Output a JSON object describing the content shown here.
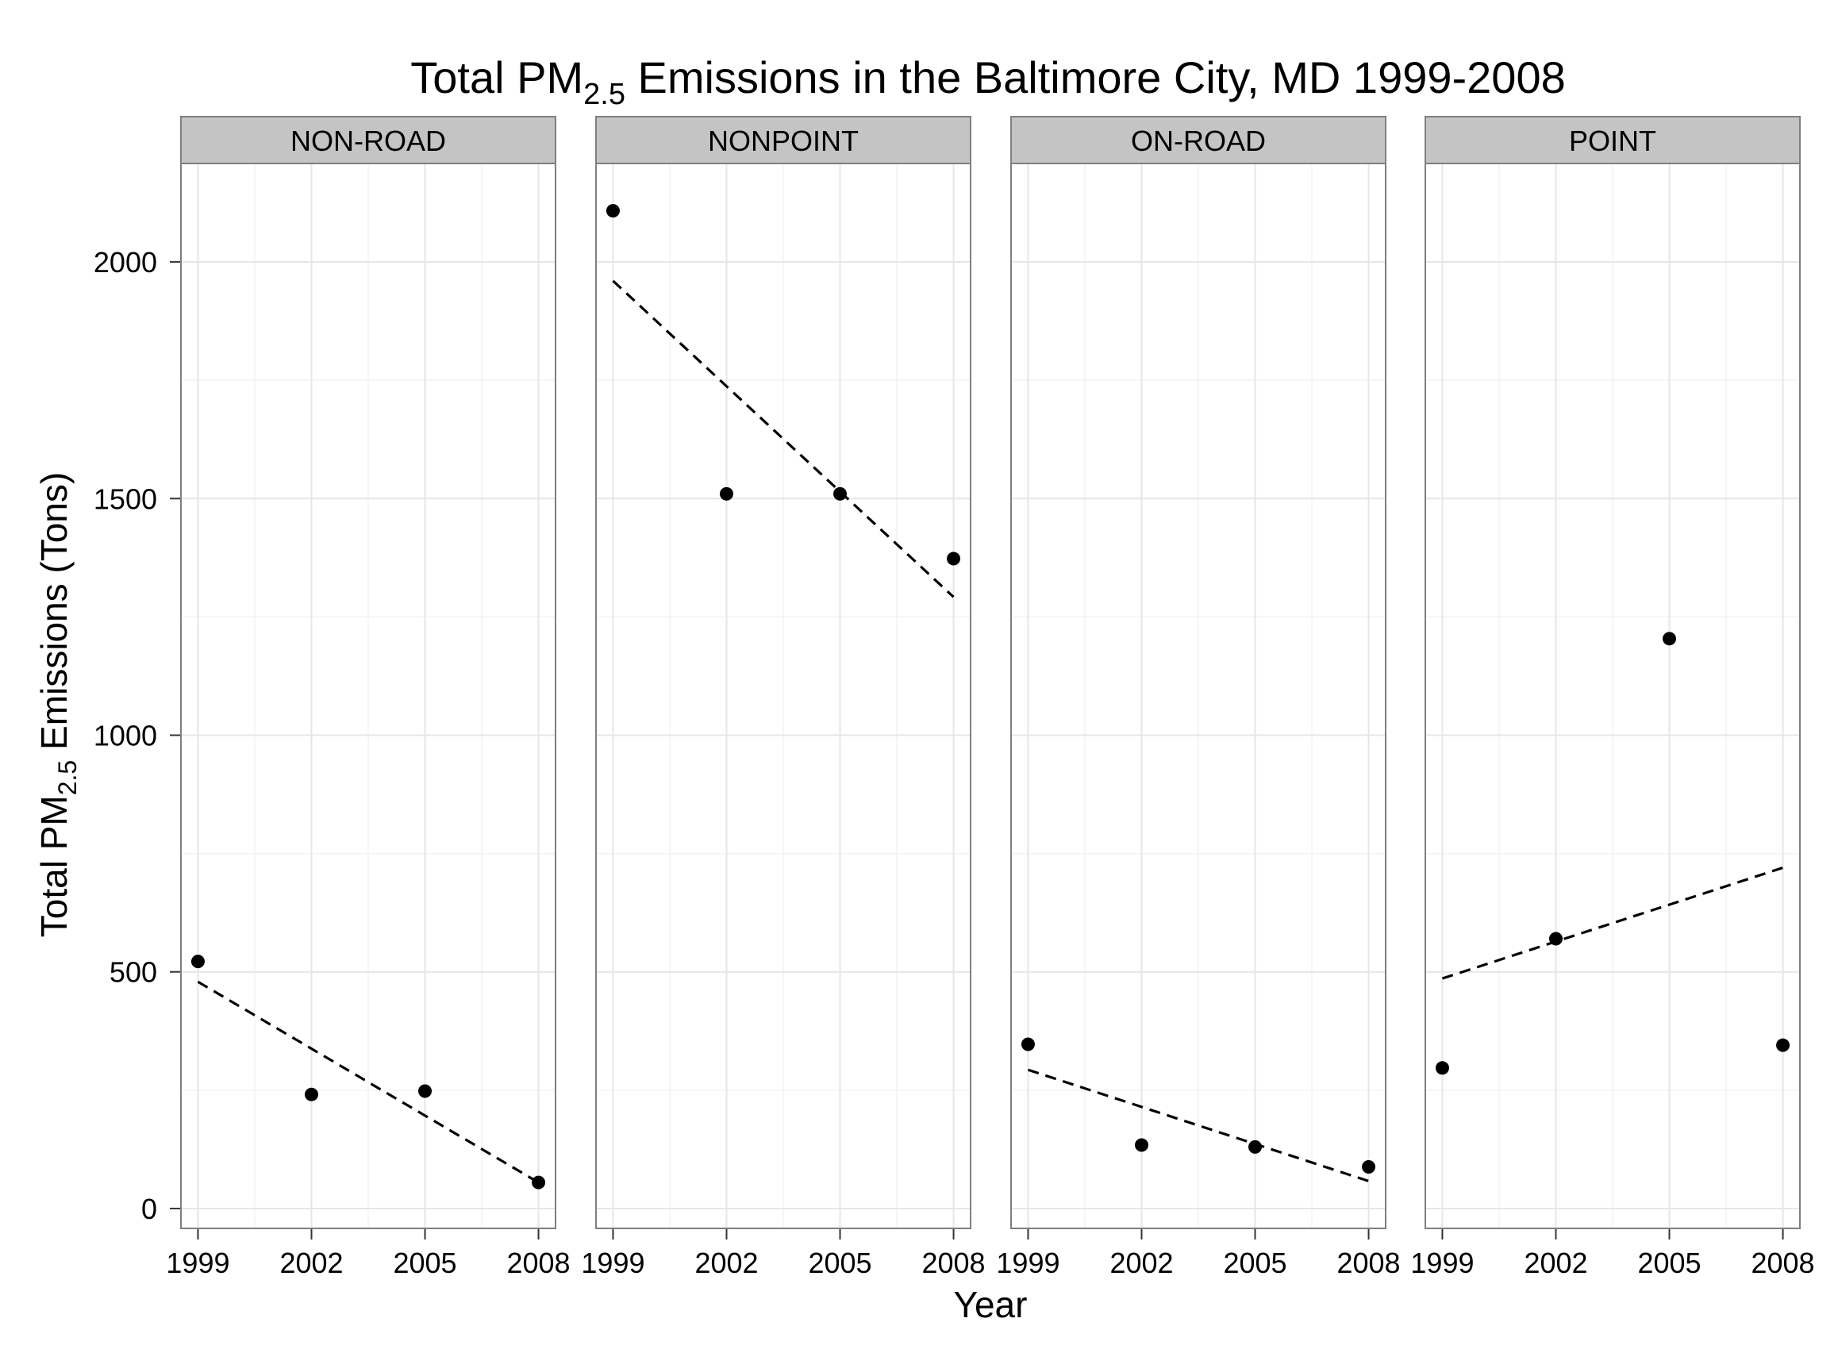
{
  "chart_data": {
    "type": "scatter",
    "title": {
      "prefix": "Total PM",
      "subscript": "2.5",
      "suffix": " Emissions in the Baltimore City, MD 1999-2008"
    },
    "xlabel": "Year",
    "ylabel": {
      "prefix": "Total PM",
      "subscript": "2.5",
      "suffix": " Emissions (Tons)"
    },
    "x_ticks": [
      1999,
      2002,
      2005,
      2008
    ],
    "x_tick_labels": [
      "1999",
      "2002",
      "2005",
      "2008"
    ],
    "xlim": [
      1998.55,
      2008.45
    ],
    "y_ticks": [
      0,
      500,
      1000,
      1500,
      2000
    ],
    "y_tick_labels": [
      "0",
      "500",
      "1000",
      "1500",
      "2000"
    ],
    "ylim": [
      -42,
      2208
    ],
    "grid": true,
    "facets": [
      {
        "name": "NON-ROAD",
        "x": [
          1999,
          2002,
          2005,
          2008
        ],
        "y": [
          522,
          241,
          248,
          55
        ],
        "trend": [
          [
            1999,
            479
          ],
          [
            2008,
            55
          ]
        ]
      },
      {
        "name": "NONPOINT",
        "x": [
          1999,
          2002,
          2005,
          2008
        ],
        "y": [
          2108,
          1510,
          1510,
          1373
        ],
        "trend": [
          [
            1999,
            1960
          ],
          [
            2008,
            1292
          ]
        ]
      },
      {
        "name": "ON-ROAD",
        "x": [
          1999,
          2002,
          2005,
          2008
        ],
        "y": [
          347,
          134,
          130,
          88
        ],
        "trend": [
          [
            1999,
            293
          ],
          [
            2008,
            58
          ]
        ]
      },
      {
        "name": "POINT",
        "x": [
          1999,
          2002,
          2005,
          2008
        ],
        "y": [
          297,
          570,
          1204,
          345
        ],
        "trend": [
          [
            1999,
            486
          ],
          [
            2008,
            720
          ]
        ]
      }
    ]
  }
}
